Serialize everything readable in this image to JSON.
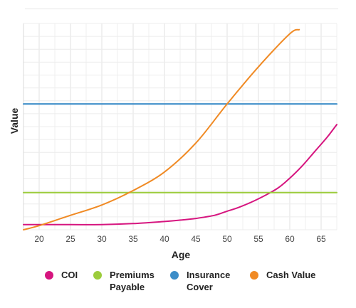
{
  "chart_data": {
    "type": "line",
    "xlabel": "Age",
    "ylabel": "Value",
    "xlim": [
      17.5,
      67.5
    ],
    "ylim": [
      0,
      100
    ],
    "xticks": [
      20,
      25,
      30,
      35,
      40,
      45,
      50,
      55,
      60,
      65
    ],
    "grid": true,
    "legend_position": "bottom",
    "series": [
      {
        "name": "COI",
        "color": "#d6157f",
        "x": [
          17.5,
          20,
          25,
          30,
          35,
          40,
          42,
          45,
          48,
          50,
          52,
          55,
          58,
          60,
          62,
          64,
          66,
          67.5
        ],
        "y": [
          2.5,
          2.5,
          2.5,
          2.5,
          3,
          4,
          4.5,
          5.5,
          7,
          9,
          11,
          15,
          20,
          25,
          31,
          38,
          45,
          51
        ]
      },
      {
        "name": "Premiums Payable",
        "color": "#9ccc3c",
        "x": [
          17.5,
          67.5
        ],
        "y": [
          18,
          18
        ]
      },
      {
        "name": "Insurance Cover",
        "color": "#3c8dc8",
        "x": [
          17.5,
          67.5
        ],
        "y": [
          61,
          61
        ]
      },
      {
        "name": "Cash Value",
        "color": "#f08a24",
        "x": [
          17.5,
          20,
          25,
          30,
          35,
          40,
          45,
          50,
          55,
          60,
          61.5
        ],
        "y": [
          0,
          2,
          7,
          12,
          19,
          28,
          42,
          61,
          79,
          95,
          97
        ]
      }
    ]
  },
  "legend": {
    "items": [
      {
        "label": "COI",
        "color": "#d6157f"
      },
      {
        "label": "Premiums\nPayable",
        "color": "#9ccc3c"
      },
      {
        "label": "Insurance\nCover",
        "color": "#3c8dc8"
      },
      {
        "label": "Cash Value",
        "color": "#f08a24"
      }
    ]
  }
}
